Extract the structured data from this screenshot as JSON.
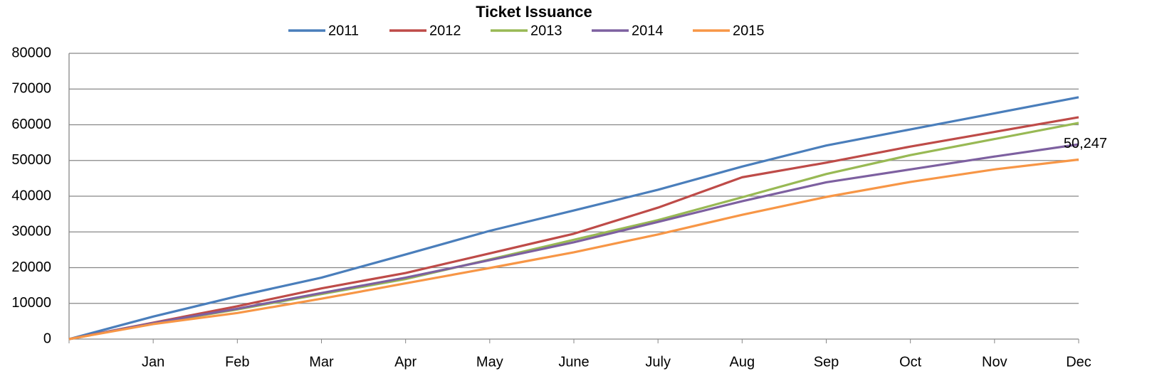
{
  "chart_data": {
    "type": "line",
    "title": "Ticket Issuance",
    "categories": [
      null,
      "Jan",
      "Feb",
      "Mar",
      "Apr",
      "May",
      "June",
      "July",
      "Aug",
      "Sep",
      "Oct",
      "Nov",
      "Dec"
    ],
    "series": [
      {
        "name": "2011",
        "color": "#4a7ebb",
        "values": [
          0,
          6300,
          12000,
          17200,
          23700,
          30300,
          36000,
          41800,
          48300,
          54200,
          58700,
          63200,
          67700
        ]
      },
      {
        "name": "2012",
        "color": "#be4b48",
        "values": [
          0,
          4600,
          9200,
          14200,
          18500,
          24000,
          29500,
          36800,
          45300,
          49400,
          53900,
          58000,
          62100
        ]
      },
      {
        "name": "2013",
        "color": "#98b954",
        "values": [
          0,
          4400,
          8300,
          12600,
          16800,
          22300,
          27800,
          33300,
          39700,
          46200,
          51500,
          56000,
          60500
        ]
      },
      {
        "name": "2014",
        "color": "#7d60a0",
        "values": [
          0,
          4500,
          8500,
          12900,
          17200,
          22100,
          27100,
          32800,
          38600,
          43900,
          47500,
          51100,
          54500
        ]
      },
      {
        "name": "2015",
        "color": "#f79646",
        "values": [
          0,
          4200,
          7300,
          11300,
          15600,
          19900,
          24300,
          29300,
          34800,
          39800,
          44000,
          47500,
          50247
        ],
        "value_labels": [
          null,
          null,
          null,
          null,
          null,
          null,
          null,
          null,
          null,
          null,
          null,
          null,
          "50,247"
        ]
      }
    ],
    "ylim": [
      0,
      80000
    ],
    "yticks": [
      0,
      10000,
      20000,
      30000,
      40000,
      50000,
      60000,
      70000,
      80000
    ],
    "grid": true,
    "legend": "top"
  }
}
